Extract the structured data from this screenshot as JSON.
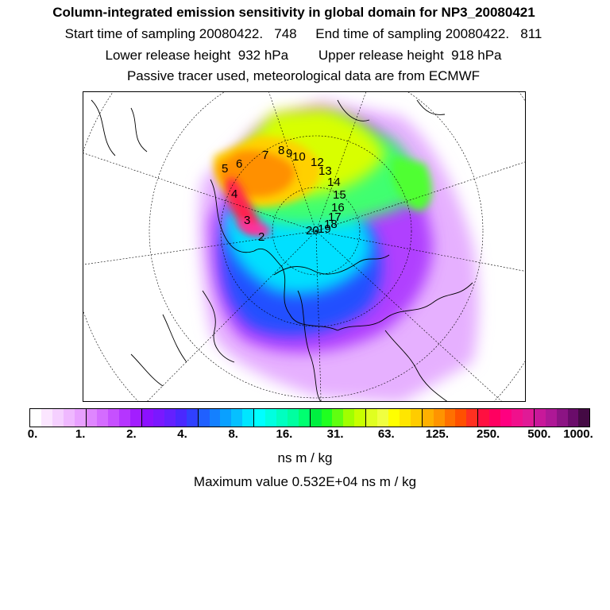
{
  "header": {
    "title": "Column-integrated emission sensitivity in global domain for NP3_20080421",
    "line2": "Start time of sampling 20080422.   748     End time of sampling 20080422.   811",
    "line3": "Lower release height  932 hPa        Upper release height  918 hPa",
    "line4": "Passive tracer used, meteorological data are from ECMWF"
  },
  "colorbar": {
    "tick_labels": [
      "0.",
      "1.",
      "2.",
      "4.",
      "8.",
      "16.",
      "31.",
      "63.",
      "125.",
      "250.",
      "500.",
      "1000."
    ],
    "colors": [
      "#ffffff",
      "#fbe6ff",
      "#f5d0ff",
      "#efb8ff",
      "#e8a0ff",
      "#df86ff",
      "#d46cff",
      "#c650ff",
      "#b535ff",
      "#a21eff",
      "#8c10ff",
      "#7a18ff",
      "#6420ff",
      "#4a28ff",
      "#3040ff",
      "#2060ff",
      "#1480ff",
      "#0aa0ff",
      "#06c0ff",
      "#00e6ff",
      "#00ffff",
      "#00ffe0",
      "#00ffc0",
      "#00ffa0",
      "#00ff70",
      "#00f040",
      "#20ff20",
      "#60ff10",
      "#a0ff00",
      "#c8ff00",
      "#e0ff20",
      "#f0ff40",
      "#ffff00",
      "#ffe600",
      "#ffcc00",
      "#ffb000",
      "#ff9400",
      "#ff7000",
      "#ff5000",
      "#ff3020",
      "#ff1040",
      "#ff0060",
      "#ff0080",
      "#f0108c",
      "#e01a96",
      "#c8189a",
      "#ae1896",
      "#8c1484",
      "#6a0c6a",
      "#440a44"
    ],
    "units": "ns m / kg"
  },
  "max_value": "Maximum value  0.532E+04 ns m / kg",
  "map": {
    "trajectory_labels": [
      "2",
      "3",
      "4",
      "5",
      "6",
      "7",
      "8",
      "9",
      "10",
      "12",
      "13",
      "14",
      "15",
      "16",
      "17",
      "18",
      "19",
      "20"
    ]
  }
}
